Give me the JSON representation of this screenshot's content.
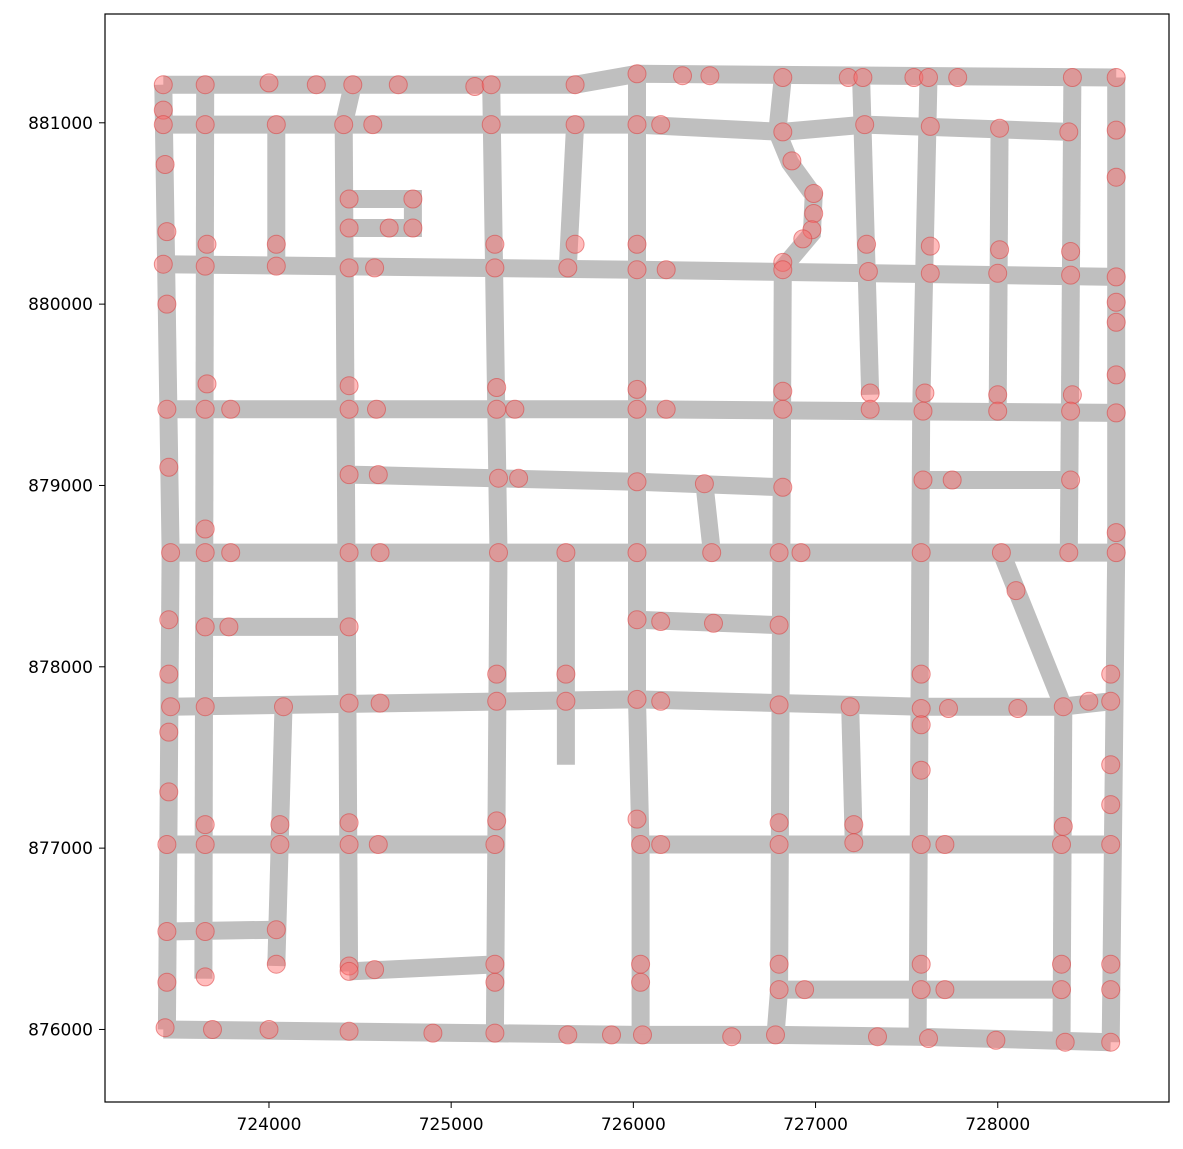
{
  "chart_data": {
    "type": "scatter",
    "xticks": [
      724000,
      725000,
      726000,
      727000,
      728000
    ],
    "yticks": [
      876000,
      877000,
      878000,
      879000,
      880000,
      881000
    ],
    "xlim": [
      723100,
      728940
    ],
    "ylim": [
      875600,
      881600
    ],
    "grid": false,
    "colors": {
      "street": "#bfbfbf",
      "node": "#ff6b6b"
    },
    "streets": [
      [
        [
          723420,
          881210
        ],
        [
          725680,
          881210
        ],
        [
          726020,
          881270
        ],
        [
          728650,
          881250
        ]
      ],
      [
        [
          723420,
          880990
        ],
        [
          726020,
          880990
        ],
        [
          726820,
          880950
        ],
        [
          727270,
          880990
        ],
        [
          728390,
          880950
        ]
      ],
      [
        [
          723420,
          880220
        ],
        [
          726020,
          880190
        ],
        [
          728650,
          880150
        ]
      ],
      [
        [
          723440,
          879420
        ],
        [
          726020,
          879420
        ],
        [
          728650,
          879400
        ]
      ],
      [
        [
          724440,
          879060
        ],
        [
          726020,
          879020
        ],
        [
          726820,
          878990
        ]
      ],
      [
        [
          727580,
          879030
        ],
        [
          728390,
          879030
        ]
      ],
      [
        [
          723460,
          878630
        ],
        [
          728650,
          878630
        ]
      ],
      [
        [
          723650,
          878220
        ],
        [
          724440,
          878220
        ]
      ],
      [
        [
          726020,
          878260
        ],
        [
          726800,
          878230
        ]
      ],
      [
        [
          723460,
          877780
        ],
        [
          726020,
          877820
        ],
        [
          727580,
          877780
        ],
        [
          728350,
          877780
        ],
        [
          728620,
          877810
        ]
      ],
      [
        [
          723440,
          877020
        ],
        [
          725240,
          877020
        ]
      ],
      [
        [
          726020,
          877020
        ],
        [
          728620,
          877020
        ]
      ],
      [
        [
          723440,
          876540
        ],
        [
          724040,
          876550
        ]
      ],
      [
        [
          724440,
          876320
        ],
        [
          725260,
          876360
        ]
      ],
      [
        [
          726800,
          876220
        ],
        [
          728350,
          876220
        ]
      ],
      [
        [
          723420,
          876000
        ],
        [
          726020,
          875970
        ],
        [
          726780,
          875970
        ],
        [
          727560,
          875960
        ],
        [
          728620,
          875930
        ]
      ],
      [
        [
          723420,
          881210
        ],
        [
          723460,
          878630
        ],
        [
          723440,
          876000
        ]
      ],
      [
        [
          723650,
          881210
        ],
        [
          723640,
          876280
        ]
      ],
      [
        [
          724040,
          880990
        ],
        [
          724040,
          880210
        ]
      ],
      [
        [
          724080,
          877780
        ],
        [
          724040,
          876350
        ]
      ],
      [
        [
          724460,
          881210
        ],
        [
          724410,
          880990
        ],
        [
          724440,
          876320
        ]
      ],
      [
        [
          724440,
          880580
        ],
        [
          724790,
          880580
        ],
        [
          724790,
          880420
        ],
        [
          724440,
          880420
        ]
      ],
      [
        [
          725220,
          881210
        ],
        [
          725260,
          878630
        ],
        [
          725240,
          875970
        ]
      ],
      [
        [
          725680,
          880990
        ],
        [
          725640,
          880200
        ]
      ],
      [
        [
          725630,
          878630
        ],
        [
          725630,
          877460
        ]
      ],
      [
        [
          726020,
          881270
        ],
        [
          726020,
          877820
        ],
        [
          726040,
          876990
        ],
        [
          726040,
          875970
        ]
      ],
      [
        [
          726820,
          881250
        ],
        [
          726790,
          880950
        ],
        [
          726860,
          880780
        ],
        [
          726990,
          880600
        ],
        [
          726980,
          880390
        ],
        [
          726820,
          880200
        ],
        [
          726800,
          876220
        ],
        [
          726780,
          875970
        ]
      ],
      [
        [
          726390,
          879010
        ],
        [
          726430,
          878640
        ]
      ],
      [
        [
          727250,
          881250
        ],
        [
          727300,
          879500
        ]
      ],
      [
        [
          727620,
          881250
        ],
        [
          727580,
          879420
        ],
        [
          727560,
          875960
        ]
      ],
      [
        [
          728010,
          880990
        ],
        [
          728000,
          879420
        ]
      ],
      [
        [
          728410,
          881250
        ],
        [
          728390,
          878630
        ]
      ],
      [
        [
          728650,
          881250
        ],
        [
          728650,
          878630
        ],
        [
          728620,
          875930
        ]
      ],
      [
        [
          728020,
          878630
        ],
        [
          728360,
          877780
        ]
      ],
      [
        [
          727190,
          877780
        ],
        [
          727210,
          877020
        ]
      ],
      [
        [
          728360,
          877780
        ],
        [
          728350,
          875930
        ]
      ]
    ],
    "nodes": [
      [
        723420,
        881210
      ],
      [
        723650,
        881210
      ],
      [
        724000,
        881220
      ],
      [
        724260,
        881210
      ],
      [
        724460,
        881210
      ],
      [
        724710,
        881210
      ],
      [
        725130,
        881200
      ],
      [
        725220,
        881210
      ],
      [
        725680,
        881210
      ],
      [
        726020,
        881270
      ],
      [
        726270,
        881260
      ],
      [
        726420,
        881260
      ],
      [
        726820,
        881250
      ],
      [
        727180,
        881250
      ],
      [
        727260,
        881250
      ],
      [
        727540,
        881250
      ],
      [
        727620,
        881250
      ],
      [
        727780,
        881250
      ],
      [
        728410,
        881250
      ],
      [
        728650,
        881250
      ],
      [
        723420,
        881070
      ],
      [
        723420,
        880990
      ],
      [
        723650,
        880990
      ],
      [
        724040,
        880990
      ],
      [
        724410,
        880990
      ],
      [
        724570,
        880990
      ],
      [
        725220,
        880990
      ],
      [
        725680,
        880990
      ],
      [
        726020,
        880990
      ],
      [
        726150,
        880990
      ],
      [
        726820,
        880950
      ],
      [
        727270,
        880990
      ],
      [
        727630,
        880980
      ],
      [
        728010,
        880970
      ],
      [
        728390,
        880950
      ],
      [
        728650,
        880960
      ],
      [
        723430,
        880770
      ],
      [
        726870,
        880790
      ],
      [
        726990,
        880610
      ],
      [
        728650,
        880700
      ],
      [
        724440,
        880580
      ],
      [
        724790,
        880580
      ],
      [
        726990,
        880500
      ],
      [
        724440,
        880420
      ],
      [
        724660,
        880420
      ],
      [
        724790,
        880420
      ],
      [
        726980,
        880410
      ],
      [
        723440,
        880400
      ],
      [
        726930,
        880360
      ],
      [
        723660,
        880330
      ],
      [
        724040,
        880330
      ],
      [
        725240,
        880330
      ],
      [
        725680,
        880330
      ],
      [
        726020,
        880330
      ],
      [
        727280,
        880330
      ],
      [
        727630,
        880320
      ],
      [
        728010,
        880300
      ],
      [
        728400,
        880290
      ],
      [
        726820,
        880230
      ],
      [
        723420,
        880220
      ],
      [
        723650,
        880210
      ],
      [
        724040,
        880210
      ],
      [
        724440,
        880200
      ],
      [
        724580,
        880200
      ],
      [
        725240,
        880200
      ],
      [
        725640,
        880200
      ],
      [
        726020,
        880190
      ],
      [
        726180,
        880190
      ],
      [
        726820,
        880190
      ],
      [
        727290,
        880180
      ],
      [
        727630,
        880170
      ],
      [
        728000,
        880170
      ],
      [
        728400,
        880160
      ],
      [
        728650,
        880150
      ],
      [
        723440,
        880000
      ],
      [
        728650,
        880010
      ],
      [
        728650,
        879900
      ],
      [
        728650,
        879610
      ],
      [
        723660,
        879560
      ],
      [
        724440,
        879550
      ],
      [
        725250,
        879540
      ],
      [
        726020,
        879530
      ],
      [
        726820,
        879520
      ],
      [
        727300,
        879510
      ],
      [
        727600,
        879510
      ],
      [
        728000,
        879500
      ],
      [
        728410,
        879500
      ],
      [
        723440,
        879420
      ],
      [
        723650,
        879420
      ],
      [
        723790,
        879420
      ],
      [
        724440,
        879420
      ],
      [
        724590,
        879420
      ],
      [
        725250,
        879420
      ],
      [
        725350,
        879420
      ],
      [
        726020,
        879420
      ],
      [
        726180,
        879420
      ],
      [
        726820,
        879420
      ],
      [
        727300,
        879420
      ],
      [
        727590,
        879410
      ],
      [
        728000,
        879410
      ],
      [
        728400,
        879410
      ],
      [
        728650,
        879400
      ],
      [
        723450,
        879100
      ],
      [
        724440,
        879060
      ],
      [
        724600,
        879060
      ],
      [
        725260,
        879040
      ],
      [
        725370,
        879040
      ],
      [
        726020,
        879020
      ],
      [
        726390,
        879010
      ],
      [
        726820,
        878990
      ],
      [
        727590,
        879030
      ],
      [
        727750,
        879030
      ],
      [
        728400,
        879030
      ],
      [
        723650,
        878760
      ],
      [
        728650,
        878740
      ],
      [
        723460,
        878630
      ],
      [
        723650,
        878630
      ],
      [
        723790,
        878630
      ],
      [
        724440,
        878630
      ],
      [
        724610,
        878630
      ],
      [
        725260,
        878630
      ],
      [
        725630,
        878630
      ],
      [
        726020,
        878630
      ],
      [
        726430,
        878630
      ],
      [
        726800,
        878630
      ],
      [
        726920,
        878630
      ],
      [
        727580,
        878630
      ],
      [
        728020,
        878630
      ],
      [
        728390,
        878630
      ],
      [
        728650,
        878630
      ],
      [
        728100,
        878420
      ],
      [
        723450,
        878260
      ],
      [
        726020,
        878260
      ],
      [
        726150,
        878250
      ],
      [
        726440,
        878240
      ],
      [
        723650,
        878220
      ],
      [
        723780,
        878220
      ],
      [
        724440,
        878220
      ],
      [
        726800,
        878230
      ],
      [
        723450,
        877960
      ],
      [
        725250,
        877960
      ],
      [
        725630,
        877960
      ],
      [
        727580,
        877960
      ],
      [
        728620,
        877960
      ],
      [
        723460,
        877780
      ],
      [
        723650,
        877780
      ],
      [
        724080,
        877780
      ],
      [
        724440,
        877800
      ],
      [
        724610,
        877800
      ],
      [
        725250,
        877810
      ],
      [
        725630,
        877810
      ],
      [
        726020,
        877820
      ],
      [
        726150,
        877810
      ],
      [
        726800,
        877790
      ],
      [
        727190,
        877780
      ],
      [
        727580,
        877770
      ],
      [
        727730,
        877770
      ],
      [
        728110,
        877770
      ],
      [
        728360,
        877780
      ],
      [
        728500,
        877810
      ],
      [
        728620,
        877810
      ],
      [
        723450,
        877640
      ],
      [
        727580,
        877680
      ],
      [
        723450,
        877310
      ],
      [
        727580,
        877430
      ],
      [
        728620,
        877460
      ],
      [
        728620,
        877240
      ],
      [
        724440,
        877140
      ],
      [
        723650,
        877130
      ],
      [
        724060,
        877130
      ],
      [
        725250,
        877150
      ],
      [
        726020,
        877160
      ],
      [
        726800,
        877140
      ],
      [
        727210,
        877130
      ],
      [
        728360,
        877120
      ],
      [
        723440,
        877020
      ],
      [
        723650,
        877020
      ],
      [
        724060,
        877020
      ],
      [
        724440,
        877020
      ],
      [
        724600,
        877020
      ],
      [
        725240,
        877020
      ],
      [
        726040,
        877020
      ],
      [
        726150,
        877020
      ],
      [
        726800,
        877020
      ],
      [
        727210,
        877030
      ],
      [
        727580,
        877020
      ],
      [
        727710,
        877020
      ],
      [
        728350,
        877020
      ],
      [
        728620,
        877020
      ],
      [
        723440,
        876540
      ],
      [
        723650,
        876540
      ],
      [
        724040,
        876550
      ],
      [
        724040,
        876360
      ],
      [
        724440,
        876350
      ],
      [
        725240,
        876360
      ],
      [
        726040,
        876360
      ],
      [
        726800,
        876360
      ],
      [
        727580,
        876360
      ],
      [
        728350,
        876360
      ],
      [
        728620,
        876360
      ],
      [
        723650,
        876290
      ],
      [
        724440,
        876320
      ],
      [
        724580,
        876330
      ],
      [
        723440,
        876260
      ],
      [
        725240,
        876260
      ],
      [
        726040,
        876260
      ],
      [
        726800,
        876220
      ],
      [
        726940,
        876220
      ],
      [
        727580,
        876220
      ],
      [
        727710,
        876220
      ],
      [
        728350,
        876220
      ],
      [
        728620,
        876220
      ],
      [
        723430,
        876010
      ],
      [
        723690,
        876000
      ],
      [
        724000,
        876000
      ],
      [
        724440,
        875990
      ],
      [
        724900,
        875980
      ],
      [
        725240,
        875980
      ],
      [
        725640,
        875970
      ],
      [
        725880,
        875970
      ],
      [
        726050,
        875970
      ],
      [
        726540,
        875960
      ],
      [
        726780,
        875970
      ],
      [
        727340,
        875960
      ],
      [
        727620,
        875950
      ],
      [
        727990,
        875940
      ],
      [
        728370,
        875930
      ],
      [
        728620,
        875930
      ]
    ]
  }
}
